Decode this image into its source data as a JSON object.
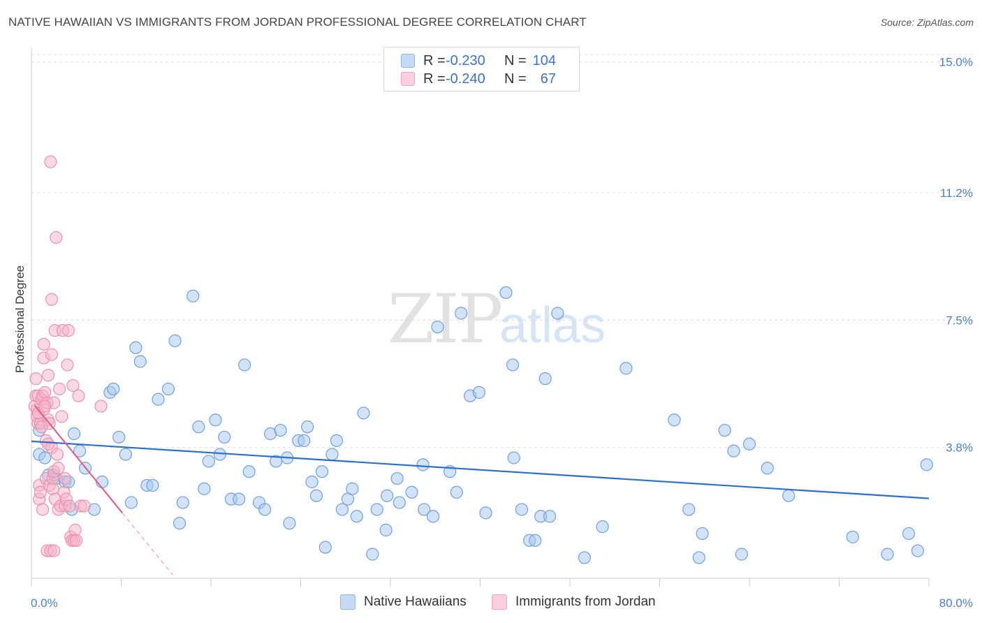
{
  "title": "NATIVE HAWAIIAN VS IMMIGRANTS FROM JORDAN PROFESSIONAL DEGREE CORRELATION CHART",
  "source": "Source: ZipAtlas.com",
  "watermark": {
    "zip": "ZIP",
    "atlas": "atlas"
  },
  "legend": {
    "rows": [
      {
        "r_label": "R =",
        "r_value": "-0.230",
        "n_label": "N =",
        "n_value": "104",
        "color": "#a8c8f0"
      },
      {
        "r_label": "R =",
        "r_value": "-0.240",
        "n_label": "N =",
        "n_value": "67",
        "color": "#f5b3c8"
      }
    ]
  },
  "bottom_legend": [
    {
      "label": "Native Hawaiians",
      "color": "#a8c8f0"
    },
    {
      "label": "Immigrants from Jordan",
      "color": "#f5b3c8"
    }
  ],
  "chart_data": {
    "type": "scatter",
    "ylabel": "Professional Degree",
    "xlim": [
      0,
      80
    ],
    "ylim": [
      0,
      15.4
    ],
    "y_ticks": [
      {
        "value": 3.8,
        "label": "3.8%"
      },
      {
        "value": 7.5,
        "label": "7.5%"
      },
      {
        "value": 11.2,
        "label": "11.2%"
      },
      {
        "value": 15.0,
        "label": "15.0%"
      }
    ],
    "x_tick_labels": [
      {
        "value": 0,
        "label": "0.0%"
      },
      {
        "value": 80,
        "label": "80.0%"
      }
    ],
    "x_minor_ticks": [
      0,
      8,
      16,
      24,
      32,
      40,
      48,
      56,
      64,
      72,
      80
    ],
    "grid": true,
    "series": [
      {
        "name": "Native Hawaiians",
        "color": "#a8c8f0",
        "stroke": "#6f9fdc",
        "trend": {
          "x": [
            0,
            80
          ],
          "y": [
            3.98,
            2.32
          ],
          "color": "#2f6fcc"
        },
        "points": [
          [
            0.7,
            4.3
          ],
          [
            0.7,
            3.6
          ],
          [
            1.2,
            3.5
          ],
          [
            1.5,
            3.0
          ],
          [
            2.0,
            3.0
          ],
          [
            2.2,
            2.9
          ],
          [
            3.0,
            2.8
          ],
          [
            3.3,
            2.8
          ],
          [
            3.8,
            4.2
          ],
          [
            3.6,
            2.0
          ],
          [
            5.6,
            2.0
          ],
          [
            4.3,
            3.7
          ],
          [
            4.8,
            3.2
          ],
          [
            6.3,
            2.8
          ],
          [
            7.0,
            5.4
          ],
          [
            7.3,
            5.5
          ],
          [
            7.8,
            4.1
          ],
          [
            8.4,
            3.6
          ],
          [
            8.9,
            2.2
          ],
          [
            9.3,
            6.7
          ],
          [
            9.7,
            6.3
          ],
          [
            10.3,
            2.7
          ],
          [
            10.8,
            2.7
          ],
          [
            11.3,
            5.2
          ],
          [
            12.2,
            5.5
          ],
          [
            12.8,
            6.9
          ],
          [
            13.2,
            1.6
          ],
          [
            13.5,
            2.2
          ],
          [
            14.4,
            8.2
          ],
          [
            14.9,
            4.4
          ],
          [
            15.4,
            2.6
          ],
          [
            15.8,
            3.4
          ],
          [
            16.4,
            4.6
          ],
          [
            16.8,
            3.6
          ],
          [
            17.2,
            4.1
          ],
          [
            17.8,
            2.3
          ],
          [
            18.5,
            2.3
          ],
          [
            19.0,
            6.2
          ],
          [
            19.4,
            3.1
          ],
          [
            20.3,
            2.2
          ],
          [
            20.8,
            2.0
          ],
          [
            21.3,
            4.2
          ],
          [
            21.8,
            3.4
          ],
          [
            22.2,
            4.3
          ],
          [
            22.8,
            3.5
          ],
          [
            23.0,
            1.6
          ],
          [
            23.8,
            4.0
          ],
          [
            24.3,
            4.0
          ],
          [
            24.6,
            4.4
          ],
          [
            25.0,
            2.8
          ],
          [
            25.4,
            2.4
          ],
          [
            25.9,
            3.1
          ],
          [
            26.2,
            0.9
          ],
          [
            26.8,
            3.6
          ],
          [
            27.2,
            4.0
          ],
          [
            27.7,
            2.0
          ],
          [
            28.2,
            2.3
          ],
          [
            28.6,
            2.6
          ],
          [
            29.0,
            1.8
          ],
          [
            29.6,
            4.8
          ],
          [
            30.4,
            0.7
          ],
          [
            30.8,
            2.0
          ],
          [
            31.6,
            1.4
          ],
          [
            31.7,
            2.4
          ],
          [
            32.6,
            2.9
          ],
          [
            32.8,
            2.2
          ],
          [
            33.9,
            2.5
          ],
          [
            34.9,
            3.3
          ],
          [
            35.0,
            2.0
          ],
          [
            35.8,
            1.8
          ],
          [
            36.2,
            7.3
          ],
          [
            37.3,
            3.1
          ],
          [
            37.9,
            2.5
          ],
          [
            38.3,
            7.7
          ],
          [
            39.1,
            5.3
          ],
          [
            39.9,
            5.4
          ],
          [
            40.5,
            1.9
          ],
          [
            42.3,
            8.3
          ],
          [
            42.9,
            6.2
          ],
          [
            43.0,
            3.5
          ],
          [
            43.7,
            2.0
          ],
          [
            44.4,
            1.1
          ],
          [
            44.9,
            1.1
          ],
          [
            45.4,
            1.8
          ],
          [
            45.8,
            5.8
          ],
          [
            46.2,
            1.8
          ],
          [
            46.9,
            7.7
          ],
          [
            49.3,
            0.6
          ],
          [
            50.9,
            1.5
          ],
          [
            53.0,
            6.1
          ],
          [
            57.3,
            4.6
          ],
          [
            58.6,
            2.0
          ],
          [
            59.5,
            0.6
          ],
          [
            59.8,
            1.3
          ],
          [
            61.8,
            4.3
          ],
          [
            62.6,
            3.7
          ],
          [
            63.3,
            0.7
          ],
          [
            64.0,
            3.9
          ],
          [
            65.6,
            3.2
          ],
          [
            67.5,
            2.4
          ],
          [
            73.2,
            1.2
          ],
          [
            76.3,
            0.7
          ],
          [
            78.2,
            1.3
          ],
          [
            79.8,
            3.3
          ],
          [
            79.0,
            0.8
          ]
        ]
      },
      {
        "name": "Immigrants from Jordan",
        "color": "#f5b3c8",
        "stroke": "#e892ad",
        "trend": {
          "x": [
            0.3,
            8.1
          ],
          "y": [
            5.02,
            1.9
          ],
          "color": "#e0608a"
        },
        "trend_dashed": {
          "x": [
            8.1,
            12.6
          ],
          "y": [
            1.9,
            0.1
          ],
          "color": "#e8a0b8"
        },
        "points": [
          [
            0.3,
            5.0
          ],
          [
            0.4,
            5.8
          ],
          [
            0.4,
            5.3
          ],
          [
            0.5,
            4.9
          ],
          [
            0.5,
            4.7
          ],
          [
            0.6,
            4.5
          ],
          [
            0.6,
            5.3
          ],
          [
            0.7,
            2.7
          ],
          [
            0.7,
            2.3
          ],
          [
            0.8,
            2.5
          ],
          [
            0.8,
            4.5
          ],
          [
            0.9,
            5.2
          ],
          [
            1.0,
            2.0
          ],
          [
            1.0,
            5.3
          ],
          [
            1.1,
            4.9
          ],
          [
            1.1,
            6.8
          ],
          [
            1.1,
            6.4
          ],
          [
            1.2,
            5.4
          ],
          [
            1.3,
            2.9
          ],
          [
            1.3,
            4.0
          ],
          [
            1.4,
            0.8
          ],
          [
            1.4,
            5.1
          ],
          [
            1.5,
            4.6
          ],
          [
            1.5,
            5.9
          ],
          [
            1.6,
            4.5
          ],
          [
            1.6,
            2.7
          ],
          [
            1.7,
            0.8
          ],
          [
            1.7,
            12.1
          ],
          [
            1.8,
            6.5
          ],
          [
            1.8,
            8.1
          ],
          [
            1.8,
            3.8
          ],
          [
            1.9,
            2.6
          ],
          [
            1.9,
            2.9
          ],
          [
            2.0,
            0.8
          ],
          [
            2.0,
            3.1
          ],
          [
            2.0,
            5.1
          ],
          [
            2.1,
            2.3
          ],
          [
            2.1,
            7.2
          ],
          [
            2.2,
            9.9
          ],
          [
            2.3,
            3.6
          ],
          [
            2.4,
            2.0
          ],
          [
            2.5,
            5.5
          ],
          [
            2.6,
            2.1
          ],
          [
            2.7,
            4.7
          ],
          [
            2.8,
            7.2
          ],
          [
            2.9,
            2.5
          ],
          [
            3.0,
            2.1
          ],
          [
            3.1,
            2.3
          ],
          [
            3.2,
            6.2
          ],
          [
            3.3,
            7.2
          ],
          [
            3.4,
            2.1
          ],
          [
            3.5,
            1.2
          ],
          [
            3.6,
            1.1
          ],
          [
            3.7,
            5.6
          ],
          [
            3.8,
            1.1
          ],
          [
            3.9,
            1.4
          ],
          [
            4.0,
            1.1
          ],
          [
            4.2,
            5.3
          ],
          [
            4.4,
            2.1
          ],
          [
            4.7,
            2.1
          ],
          [
            0.6,
            4.8
          ],
          [
            0.9,
            4.4
          ],
          [
            1.2,
            5.0
          ],
          [
            1.5,
            3.9
          ],
          [
            2.4,
            3.2
          ],
          [
            6.2,
            5.0
          ],
          [
            3.0,
            2.9
          ]
        ]
      }
    ]
  }
}
